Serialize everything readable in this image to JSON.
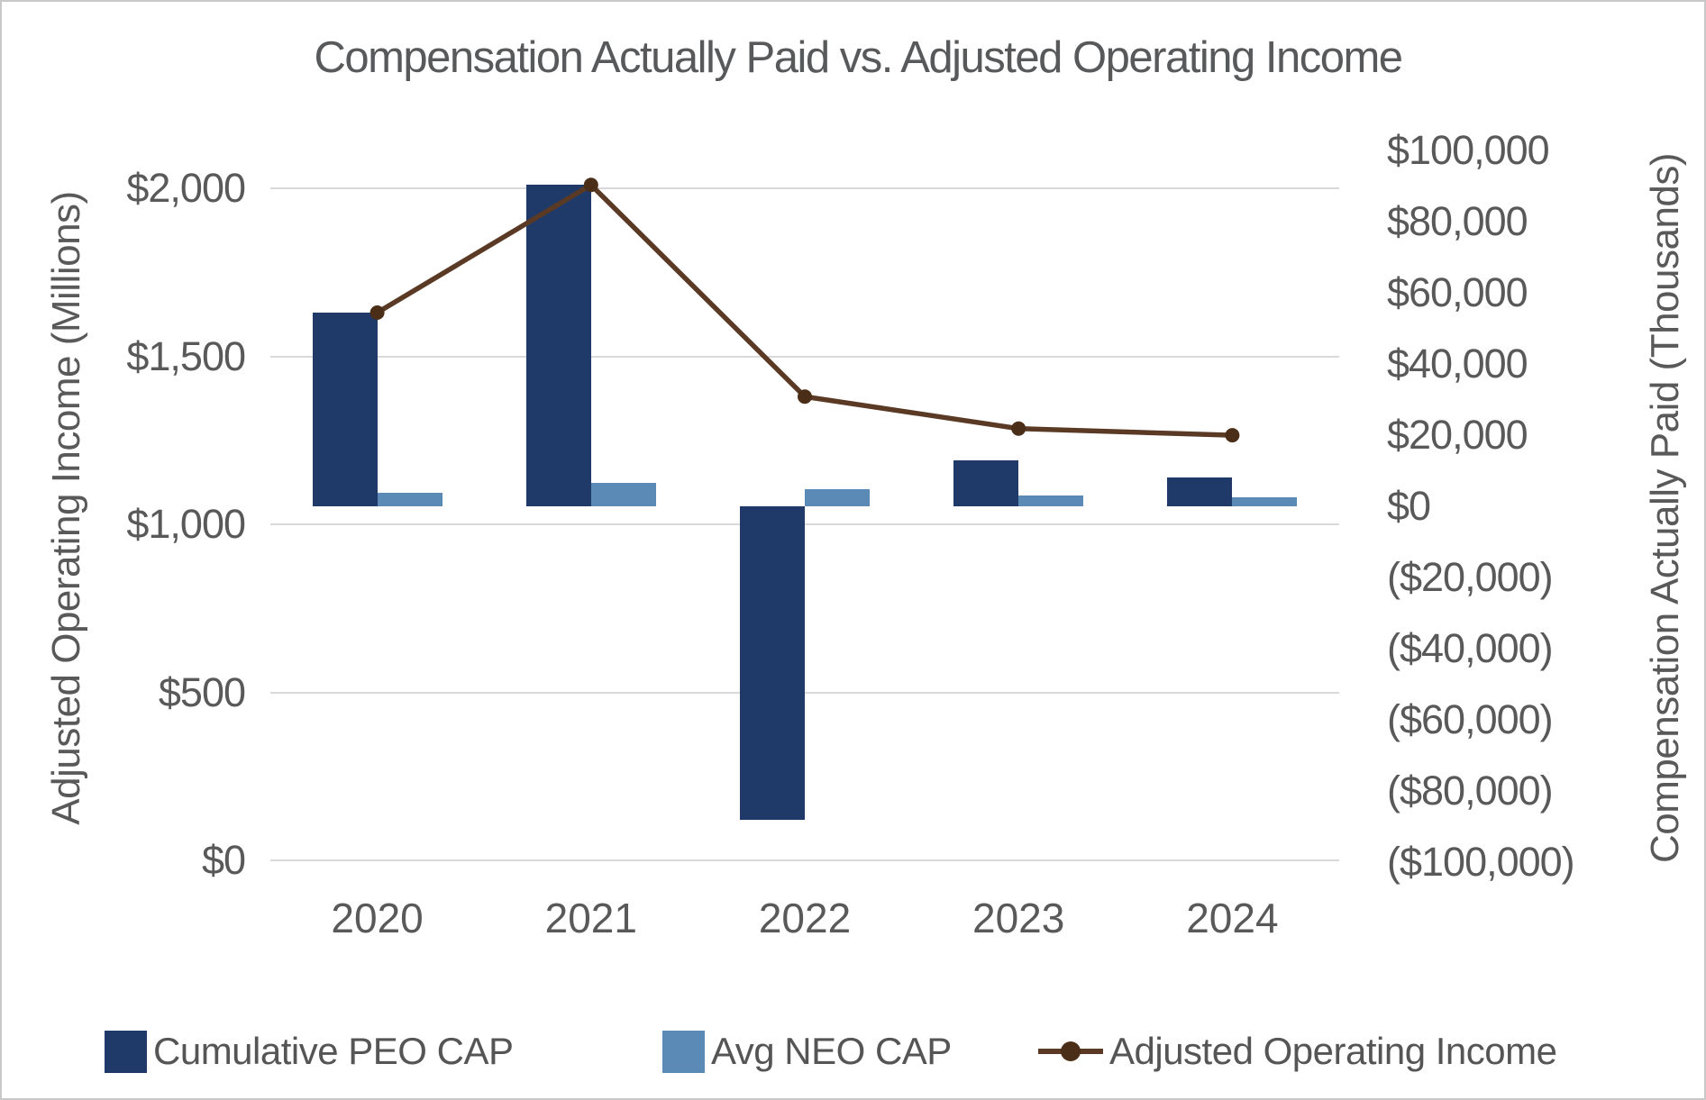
{
  "title": "Compensation Actually Paid vs. Adjusted Operating Income",
  "axes": {
    "left": {
      "title": "Adjusted Operating Income (Millions)",
      "ticks": [
        {
          "label": "$2,000",
          "value": 2000
        },
        {
          "label": "$1,500",
          "value": 1500
        },
        {
          "label": "$1,000",
          "value": 1000
        },
        {
          "label": "$500",
          "value": 500
        },
        {
          "label": "$0",
          "value": 0
        }
      ]
    },
    "right": {
      "title": "Compensation Actually Paid (Thousands)",
      "ticks": [
        {
          "label": "$100,000",
          "value": 100000
        },
        {
          "label": "$80,000",
          "value": 80000
        },
        {
          "label": "$60,000",
          "value": 60000
        },
        {
          "label": "$40,000",
          "value": 40000
        },
        {
          "label": "$20,000",
          "value": 20000
        },
        {
          "label": "$0",
          "value": 0
        },
        {
          "label": "($20,000)",
          "value": -20000
        },
        {
          "label": "($40,000)",
          "value": -40000
        },
        {
          "label": "($60,000)",
          "value": -60000
        },
        {
          "label": "($80,000)",
          "value": -80000
        },
        {
          "label": "($100,000)",
          "value": -100000
        }
      ]
    }
  },
  "legend": [
    {
      "label": "Cumulative PEO CAP",
      "marker": "square",
      "color": "#1f3a68"
    },
    {
      "label": "Avg NEO CAP",
      "marker": "square",
      "color": "#5b8ab6"
    },
    {
      "label": "Adjusted Operating Income",
      "marker": "line-dot",
      "color": "#5a3a24",
      "dot_color": "#4b2e17"
    }
  ],
  "colors": {
    "peo_bar": "#1f3a68",
    "neo_bar": "#5b8ab6",
    "aoi_line": "#5a3a24",
    "aoi_dot": "#4b2e17",
    "gridline": "#d9d9d9",
    "text": "#595959",
    "border": "#c8c8c8"
  },
  "chart_data": {
    "type": "bar+line combo (dual axis)",
    "categories": [
      "2020",
      "2021",
      "2022",
      "2023",
      "2024"
    ],
    "series": [
      {
        "name": "Cumulative PEO CAP",
        "type": "bar",
        "axis": "right",
        "unit": "thousands USD",
        "color": "#1f3a68",
        "values": [
          54500,
          90300,
          -88000,
          13000,
          8200
        ]
      },
      {
        "name": "Avg NEO CAP",
        "type": "bar",
        "axis": "right",
        "unit": "thousands USD",
        "color": "#5b8ab6",
        "values": [
          3700,
          6500,
          4800,
          3100,
          2500
        ]
      },
      {
        "name": "Adjusted Operating Income",
        "type": "line",
        "axis": "left",
        "unit": "millions USD",
        "color": "#5a3a24",
        "values": [
          1630,
          2010,
          1380,
          1285,
          1265
        ]
      }
    ],
    "title": "Compensation Actually Paid vs. Adjusted Operating Income",
    "xlabel": "",
    "ylabel_left": "Adjusted Operating Income (Millions)",
    "ylabel_right": "Compensation Actually Paid (Thousands)",
    "left_axis_range": [
      0,
      2000
    ],
    "right_axis_range": [
      -100000,
      100000
    ],
    "grid": true,
    "legend_position": "bottom"
  }
}
